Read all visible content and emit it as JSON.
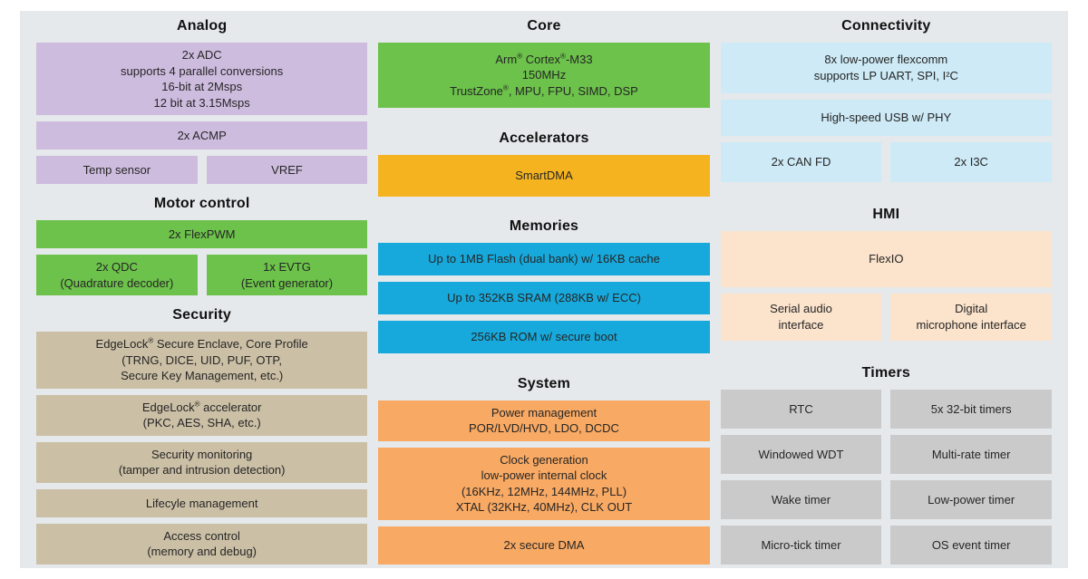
{
  "palette": {
    "panel_bg": "#e5e9eb",
    "analog": "#cebcdf",
    "motor_control": "#6cc24a",
    "security": "#cbbfa5",
    "core": "#6cc24a",
    "accelerators": "#f5b41f",
    "memories": "#17a9dc",
    "system": "#f8a963",
    "connectivity": "#cdeaf6",
    "hmi": "#fbe3cc",
    "timers": "#cacaca",
    "title_text": "#111111",
    "block_text": "#262626"
  },
  "diagram": {
    "columns": [
      {
        "name": "left",
        "sections": [
          {
            "title": "Analog",
            "color": "#cebcdf",
            "rows": [
              {
                "cells": [
                  {
                    "lines": [
                      "2x ADC",
                      "supports 4 parallel conversions",
                      "16-bit at 2Msps",
                      "12 bit at 3.15Msps"
                    ]
                  }
                ]
              },
              {
                "cells": [
                  {
                    "lines": [
                      "2x ACMP"
                    ]
                  }
                ]
              },
              {
                "cells": [
                  {
                    "lines": [
                      "Temp sensor"
                    ]
                  },
                  {
                    "lines": [
                      "VREF"
                    ]
                  }
                ]
              }
            ]
          },
          {
            "title": "Motor control",
            "color": "#6cc24a",
            "rows": [
              {
                "cells": [
                  {
                    "lines": [
                      "2x FlexPWM"
                    ]
                  }
                ]
              },
              {
                "cells": [
                  {
                    "lines": [
                      "2x QDC",
                      "(Quadrature decoder)"
                    ]
                  },
                  {
                    "lines": [
                      "1x EVTG",
                      "(Event generator)"
                    ]
                  }
                ]
              }
            ]
          },
          {
            "title": "Security",
            "color": "#cbbfa5",
            "rows": [
              {
                "cells": [
                  {
                    "lines": [
                      "EdgeLock® Secure Enclave, Core Profile",
                      "(TRNG, DICE, UID, PUF, OTP,",
                      "Secure Key Management, etc.)"
                    ]
                  }
                ]
              },
              {
                "cells": [
                  {
                    "lines": [
                      "EdgeLock® accelerator",
                      "(PKC, AES, SHA, etc.)"
                    ]
                  }
                ]
              },
              {
                "cells": [
                  {
                    "lines": [
                      "Security monitoring",
                      "(tamper and intrusion detection)"
                    ]
                  }
                ]
              },
              {
                "cells": [
                  {
                    "lines": [
                      "Lifecyle management"
                    ]
                  }
                ]
              },
              {
                "cells": [
                  {
                    "lines": [
                      "Access control",
                      "(memory and debug)"
                    ]
                  }
                ]
              }
            ]
          }
        ]
      },
      {
        "name": "center",
        "sections": [
          {
            "title": "Core",
            "color": "#6cc24a",
            "rows": [
              {
                "cells": [
                  {
                    "lines": [
                      "Arm® Cortex®-M33",
                      "150MHz",
                      "TrustZone®, MPU, FPU, SIMD, DSP"
                    ]
                  }
                ]
              }
            ]
          },
          {
            "title": "Accelerators",
            "color": "#f5b41f",
            "rows": [
              {
                "cells": [
                  {
                    "lines": [
                      "SmartDMA"
                    ]
                  }
                ]
              }
            ]
          },
          {
            "title": "Memories",
            "color": "#17a9dc",
            "rows": [
              {
                "cells": [
                  {
                    "lines": [
                      "Up to 1MB Flash (dual bank) w/ 16KB cache"
                    ]
                  }
                ]
              },
              {
                "cells": [
                  {
                    "lines": [
                      "Up to 352KB SRAM (288KB w/ ECC)"
                    ]
                  }
                ]
              },
              {
                "cells": [
                  {
                    "lines": [
                      "256KB ROM w/ secure boot"
                    ]
                  }
                ]
              }
            ]
          },
          {
            "title": "System",
            "color": "#f8a963",
            "rows": [
              {
                "cells": [
                  {
                    "lines": [
                      "Power management",
                      "POR/LVD/HVD, LDO, DCDC"
                    ]
                  }
                ]
              },
              {
                "cells": [
                  {
                    "lines": [
                      "Clock generation",
                      "low-power internal clock",
                      "(16KHz, 12MHz, 144MHz, PLL)",
                      "XTAL (32KHz, 40MHz), CLK OUT"
                    ]
                  }
                ]
              },
              {
                "cells": [
                  {
                    "lines": [
                      "2x secure DMA"
                    ]
                  }
                ]
              }
            ]
          }
        ]
      },
      {
        "name": "right",
        "sections": [
          {
            "title": "Connectivity",
            "color": "#cdeaf6",
            "rows": [
              {
                "cells": [
                  {
                    "lines": [
                      "8x low-power flexcomm",
                      "supports LP UART, SPI, I²C"
                    ]
                  }
                ]
              },
              {
                "cells": [
                  {
                    "lines": [
                      "High-speed USB w/ PHY"
                    ]
                  }
                ]
              },
              {
                "cells": [
                  {
                    "lines": [
                      "2x CAN FD"
                    ]
                  },
                  {
                    "lines": [
                      "2x I3C"
                    ]
                  }
                ]
              }
            ]
          },
          {
            "title": "HMI",
            "color": "#fbe3cc",
            "rows": [
              {
                "cells": [
                  {
                    "lines": [
                      "FlexIO"
                    ]
                  }
                ]
              },
              {
                "cells": [
                  {
                    "lines": [
                      "Serial audio",
                      "interface"
                    ]
                  },
                  {
                    "lines": [
                      "Digital",
                      "microphone interface"
                    ]
                  }
                ]
              }
            ]
          },
          {
            "title": "Timers",
            "color": "#cacaca",
            "rows": [
              {
                "cells": [
                  {
                    "lines": [
                      "RTC"
                    ]
                  },
                  {
                    "lines": [
                      "5x 32-bit timers"
                    ]
                  }
                ]
              },
              {
                "cells": [
                  {
                    "lines": [
                      "Windowed WDT"
                    ]
                  },
                  {
                    "lines": [
                      "Multi-rate timer"
                    ]
                  }
                ]
              },
              {
                "cells": [
                  {
                    "lines": [
                      "Wake timer"
                    ]
                  },
                  {
                    "lines": [
                      "Low-power timer"
                    ]
                  }
                ]
              },
              {
                "cells": [
                  {
                    "lines": [
                      "Micro-tick timer"
                    ]
                  },
                  {
                    "lines": [
                      "OS event timer"
                    ]
                  }
                ]
              }
            ]
          }
        ]
      }
    ]
  }
}
